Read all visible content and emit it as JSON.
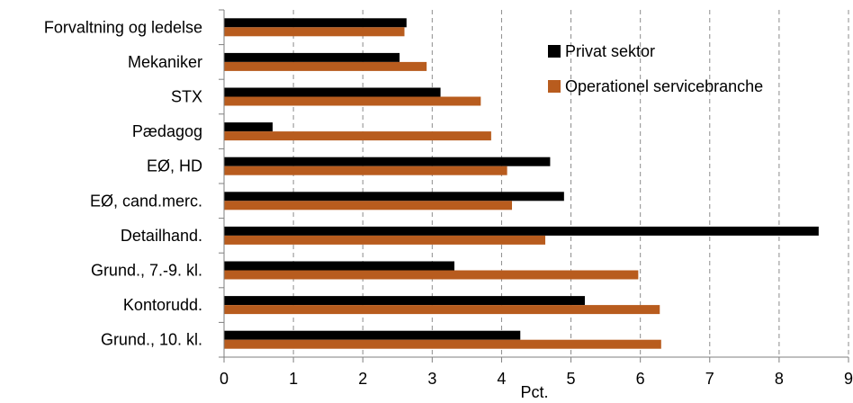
{
  "chart_data": {
    "type": "bar",
    "orientation": "horizontal",
    "categories": [
      "Forvaltning og ledelse",
      "Mekaniker",
      "STX",
      "Pædagog",
      "EØ, HD",
      "EØ, cand.merc.",
      "Detailhand.",
      "Grund., 7.-9. kl.",
      "Kontorudd.",
      "Grund., 10. kl."
    ],
    "series": [
      {
        "name": "Privat sektor",
        "color": "#000000",
        "values": [
          2.63,
          2.53,
          3.12,
          0.7,
          4.7,
          4.9,
          8.57,
          3.32,
          5.2,
          4.27
        ]
      },
      {
        "name": "Operationel servicebranche",
        "color": "#b85c1e",
        "values": [
          2.6,
          2.92,
          3.7,
          3.85,
          4.08,
          4.15,
          4.63,
          5.97,
          6.28,
          6.3
        ]
      }
    ],
    "xlabel": "Pct.",
    "ylabel": "",
    "xlim": [
      0,
      9
    ],
    "xticks": [
      "0",
      "1",
      "2",
      "3",
      "4",
      "5",
      "6",
      "7",
      "8",
      "9"
    ],
    "grid": "vertical dashed",
    "legend_position": "top-right"
  }
}
